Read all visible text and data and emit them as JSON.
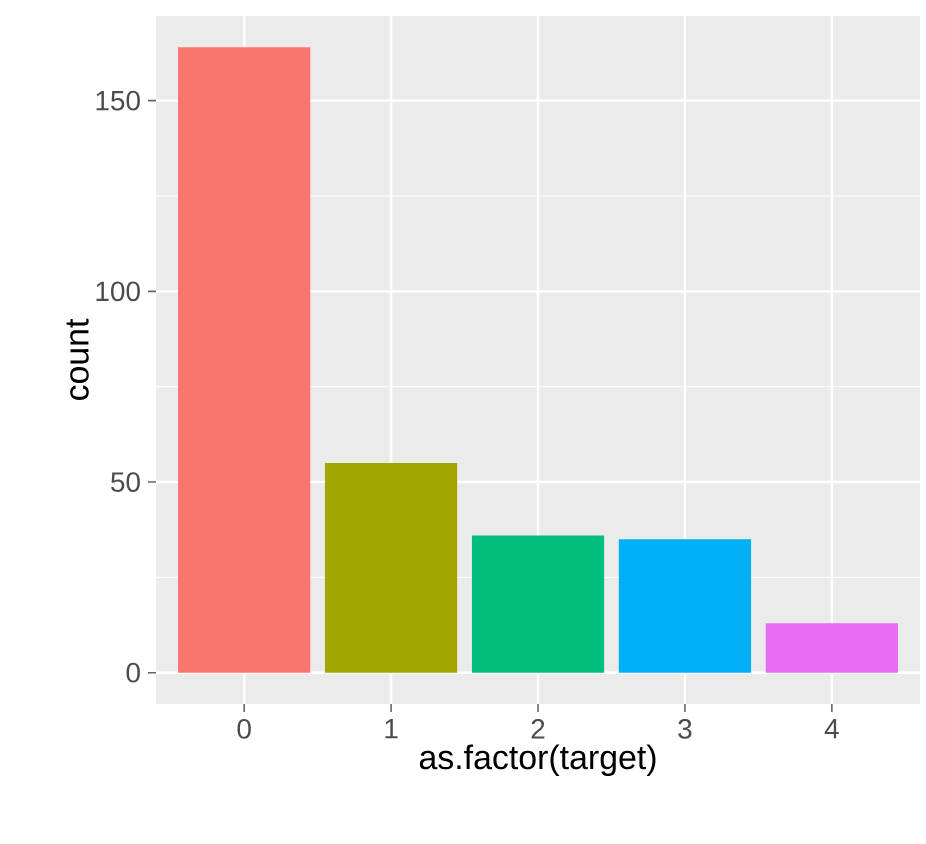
{
  "chart_data": {
    "type": "bar",
    "xlabel": "as.factor(target)",
    "ylabel": "count",
    "categories": [
      "0",
      "1",
      "2",
      "3",
      "4"
    ],
    "values": [
      164,
      55,
      36,
      35,
      13
    ],
    "colors": [
      "#F8766D",
      "#A3A500",
      "#00BF7D",
      "#00B0F6",
      "#E76BF3"
    ],
    "ylim": [
      -8.2,
      172.2
    ],
    "yticks": [
      0,
      50,
      100,
      150
    ],
    "grid": true
  }
}
